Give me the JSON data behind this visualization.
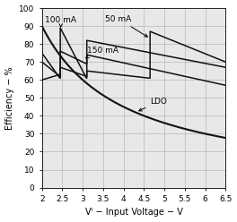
{
  "xlabel": "Vᴵ − Input Voltage − V",
  "ylabel": "Efficiency − %",
  "xlim": [
    2,
    6.5
  ],
  "ylim": [
    0,
    100
  ],
  "xticks": [
    2,
    2.5,
    3,
    3.5,
    4,
    4.5,
    5,
    5.5,
    6,
    6.5
  ],
  "yticks": [
    0,
    10,
    20,
    30,
    40,
    50,
    60,
    70,
    80,
    90,
    100
  ],
  "bg_color": "#e8e8e8",
  "line_color": "#111111",
  "ldo_vout": 1.8
}
